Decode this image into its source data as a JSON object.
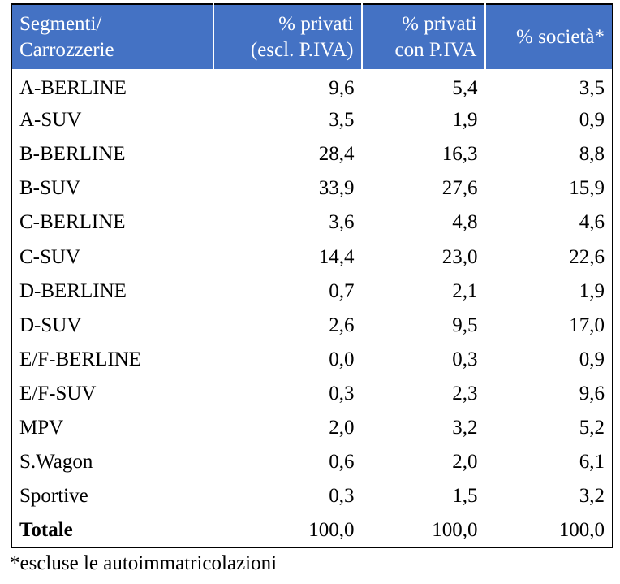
{
  "header": {
    "col1": [
      "Segmenti/",
      "Carrozzerie"
    ],
    "col2": [
      "% privati",
      "(escl. P.IVA)"
    ],
    "col3": [
      "% privati",
      "con P.IVA"
    ],
    "col4": "% società*"
  },
  "rows": [
    {
      "label": "A-BERLINE",
      "v1": "9,6",
      "v2": "5,4",
      "v3": "3,5"
    },
    {
      "label": "A-SUV",
      "v1": "3,5",
      "v2": "1,9",
      "v3": "0,9"
    },
    {
      "label": "B-BERLINE",
      "v1": "28,4",
      "v2": "16,3",
      "v3": "8,8"
    },
    {
      "label": "B-SUV",
      "v1": "33,9",
      "v2": "27,6",
      "v3": "15,9"
    },
    {
      "label": "C-BERLINE",
      "v1": "3,6",
      "v2": "4,8",
      "v3": "4,6"
    },
    {
      "label": "C-SUV",
      "v1": "14,4",
      "v2": "23,0",
      "v3": "22,6"
    },
    {
      "label": "D-BERLINE",
      "v1": "0,7",
      "v2": "2,1",
      "v3": "1,9"
    },
    {
      "label": "D-SUV",
      "v1": "2,6",
      "v2": "9,5",
      "v3": "17,0"
    },
    {
      "label": "E/F-BERLINE",
      "v1": "0,0",
      "v2": "0,3",
      "v3": "0,9"
    },
    {
      "label": "E/F-SUV",
      "v1": "0,3",
      "v2": "2,3",
      "v3": "9,6"
    },
    {
      "label": "MPV",
      "v1": "2,0",
      "v2": "3,2",
      "v3": "5,2"
    },
    {
      "label": "S.Wagon",
      "v1": "0,6",
      "v2": "2,0",
      "v3": "6,1"
    },
    {
      "label": "Sportive",
      "v1": "0,3",
      "v2": "1,5",
      "v3": "3,2"
    }
  ],
  "total": {
    "label": "Totale",
    "v1": "100,0",
    "v2": "100,0",
    "v3": "100,0"
  },
  "footnote": "*escluse le autoimmatricolazioni",
  "colors": {
    "header_bg": "#4472c4",
    "header_text": "#ffffff"
  }
}
